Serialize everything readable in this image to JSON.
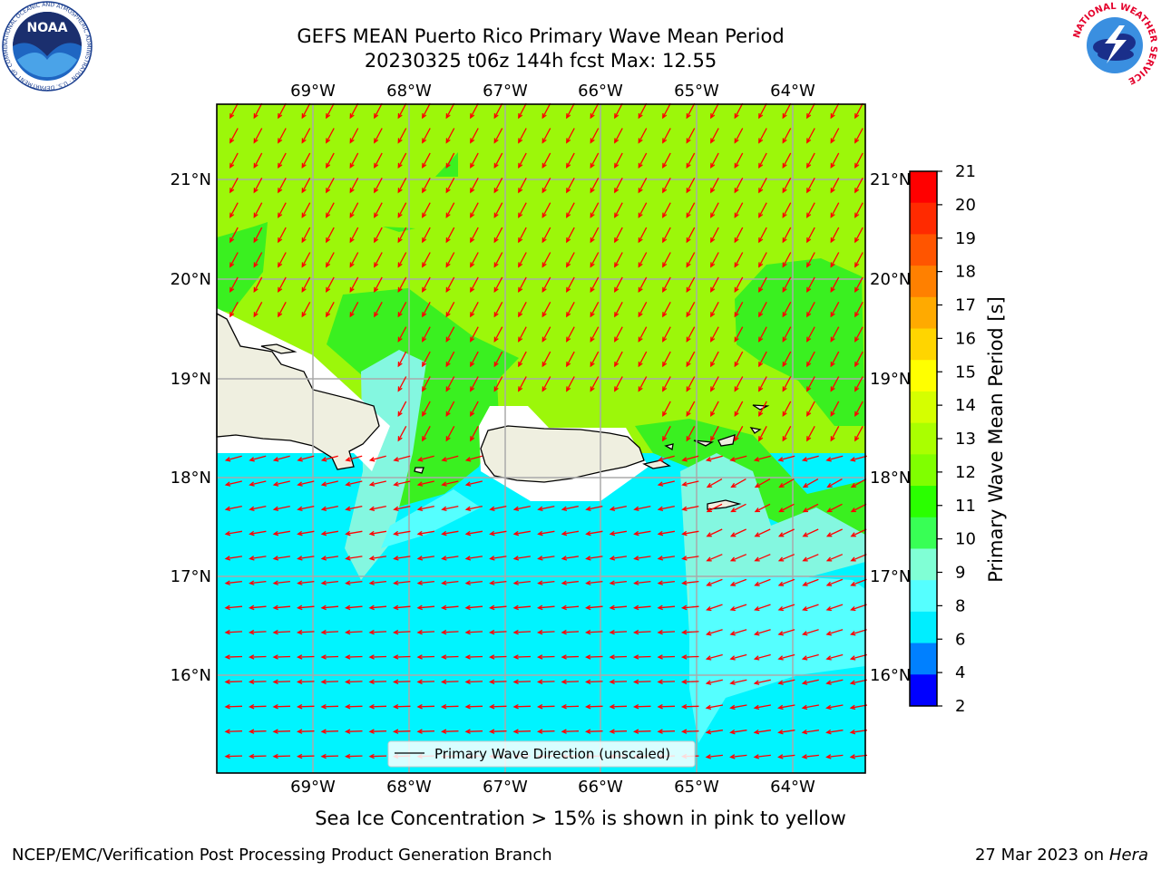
{
  "title": {
    "line1": "GEFS MEAN Puerto Rico Primary Wave Mean Period",
    "line2": "20230325 t06z 144h fcst   Max: 12.55"
  },
  "map": {
    "lon_labels": [
      "69°W",
      "68°W",
      "67°W",
      "66°W",
      "65°W",
      "64°W"
    ],
    "lat_labels": [
      "21°N",
      "20°N",
      "19°N",
      "18°N",
      "17°N",
      "16°N"
    ],
    "land_color": "#efefe0",
    "arrow_color": "#ff0000"
  },
  "legend": {
    "label": "Primary Wave Direction (unscaled)"
  },
  "colorbar": {
    "title": "Primary Wave Mean Period [s]",
    "ticks": [
      "21",
      "20",
      "19",
      "18",
      "17",
      "16",
      "15",
      "14",
      "13",
      "12",
      "11",
      "10",
      "9",
      "8",
      "6",
      "4",
      "2"
    ],
    "colors": [
      "#ff0000",
      "#ff2a00",
      "#ff5500",
      "#ff8000",
      "#ffaa00",
      "#ffd500",
      "#ffff00",
      "#d5ff00",
      "#aaff00",
      "#80ff00",
      "#2aff00",
      "#38ff55",
      "#80ffd5",
      "#55ffff",
      "#00eeff",
      "#0080ff",
      "#0000ff"
    ]
  },
  "footer": {
    "note": "Sea Ice Concentration > 15% is shown in pink to yellow",
    "credit": "NCEP/EMC/Verification Post Processing Product Generation Branch",
    "date": "27 Mar 2023 on",
    "host": "Hera"
  },
  "logos": {
    "noaa_text": "NOAA",
    "noaa_ring": "NATIONAL OCEANIC AND ATMOSPHERIC ADMINISTRATION · U.S. DEPARTMENT OF COMMERCE",
    "nws_ring": "NATIONAL WEATHER SERVICE"
  }
}
